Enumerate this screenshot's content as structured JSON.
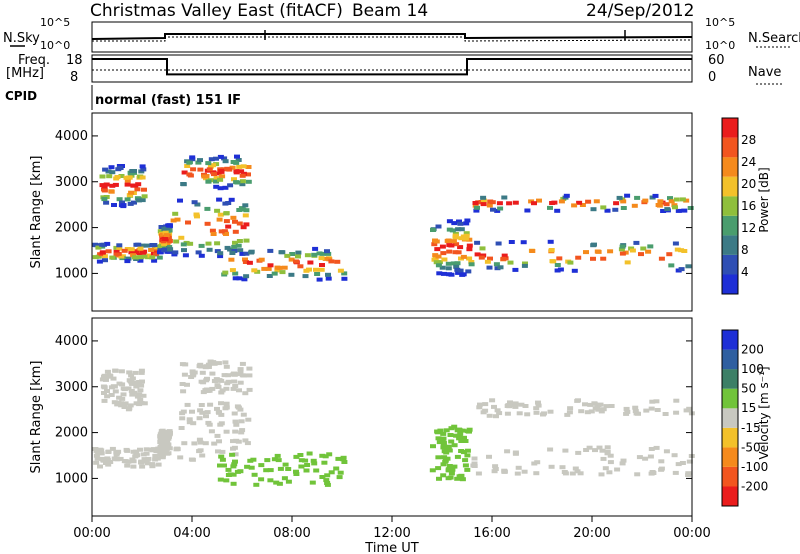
{
  "header": {
    "title": "Christmas Valley East (fitACF)",
    "beam": "Beam 14",
    "date": "24/Sep/2012"
  },
  "summary_panels": {
    "nsky_label": "N.Sky",
    "nsky_ticks": [
      "10^5",
      "10^0"
    ],
    "nsearch_label": "N.Search",
    "nsearch_ticks": [
      "10^5",
      "10^0"
    ],
    "freq_label_1": "Freq.",
    "freq_label_2": "[MHz]",
    "freq_ticks": [
      "18",
      "8"
    ],
    "nave_label": "Nave",
    "nave_ticks": [
      "60",
      "0"
    ],
    "cpid_label": "CPID",
    "cpid_text": "normal (fast) 151 IF"
  },
  "colors": {
    "power_scale": [
      "#1e2fd6",
      "#2f4fb4",
      "#3c7a86",
      "#4a9d6e",
      "#8fbf3c",
      "#f3c12a",
      "#f58a1c",
      "#f2551f",
      "#ea1c1c"
    ],
    "velocity_scale": [
      "#1e2fd6",
      "#2f5fa0",
      "#3c7f66",
      "#71c43a",
      "#c8c8c0",
      "#f3c12a",
      "#f58a1c",
      "#f2551f",
      "#ea1c1c"
    ]
  },
  "chart_data": [
    {
      "type": "heatmap",
      "name": "power",
      "ylabel": "Slant Range [km]",
      "xlabel": "Time UT",
      "x_ticks": [
        "00:00",
        "04:00",
        "08:00",
        "12:00",
        "16:00",
        "20:00",
        "00:00"
      ],
      "y_ticks": [
        "1000",
        "2000",
        "3000",
        "4000"
      ],
      "xlim": [
        0,
        24
      ],
      "ylim": [
        180,
        4500
      ],
      "colorbar_label": "Power [dB]",
      "colorbar_ticks": [
        "4",
        "8",
        "12",
        "16",
        "20",
        "24",
        "28"
      ],
      "colorbar_range": [
        0,
        32
      ]
    },
    {
      "type": "heatmap",
      "name": "velocity",
      "ylabel": "Slant Range [km]",
      "xlabel": "Time UT",
      "x_ticks": [
        "00:00",
        "04:00",
        "08:00",
        "12:00",
        "16:00",
        "20:00",
        "00:00"
      ],
      "y_ticks": [
        "1000",
        "2000",
        "3000",
        "4000"
      ],
      "xlim": [
        0,
        24
      ],
      "ylim": [
        180,
        4500
      ],
      "colorbar_label": "Velocity [m s⁻¹]",
      "colorbar_ticks": [
        "200",
        "100",
        "50",
        "15",
        "-15",
        "-50",
        "-100",
        "-200"
      ]
    }
  ],
  "frequency_series": {
    "x_hours": [
      0,
      3.0,
      3.0,
      15.0,
      15.0,
      24
    ],
    "freq_mhz": [
      16.5,
      16.5,
      10.8,
      10.8,
      16.5,
      16.5
    ]
  }
}
